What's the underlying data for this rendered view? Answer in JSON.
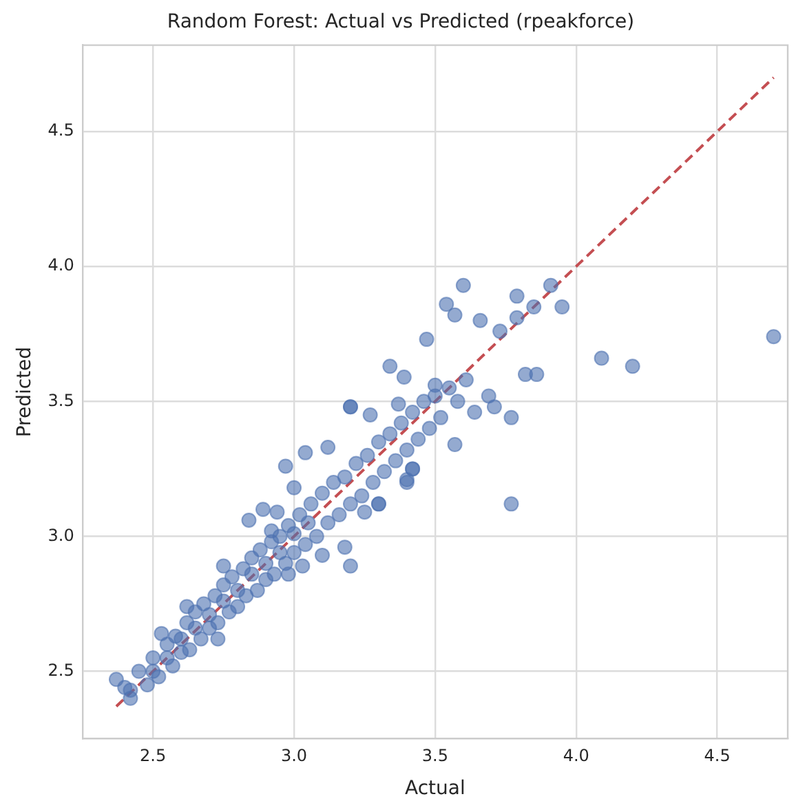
{
  "chart_data": {
    "type": "scatter",
    "title": "Random Forest: Actual vs Predicted (rpeakforce)",
    "xlabel": "Actual",
    "ylabel": "Predicted",
    "xlim": [
      2.25,
      4.75
    ],
    "ylim": [
      2.25,
      4.82
    ],
    "xticks": [
      2.5,
      {
        "value": 3,
        "label": "3.0"
      },
      3.5,
      {
        "value": 4,
        "label": "4.0"
      },
      4.5
    ],
    "yticks": [
      2.5,
      {
        "value": 3,
        "label": "3.0"
      },
      3.5,
      {
        "value": 4,
        "label": "4.0"
      },
      4.5
    ],
    "grid": true,
    "legend": false,
    "series": [
      {
        "marker": "circle",
        "color": "#4c72b0",
        "x": [
          4.7,
          4.09,
          4.2,
          3.77,
          3.95,
          3.6,
          3.54,
          3.57,
          3.66,
          3.73,
          3.79,
          3.79,
          3.85,
          3.91,
          3.47,
          3.34,
          3.39,
          3.82,
          3.86,
          3.69,
          3.71,
          3.77,
          3.64,
          3.61,
          3.5,
          3.2,
          3.57,
          3.42,
          3.3,
          3.4,
          2.37,
          2.42,
          3.2,
          3.18,
          3.1,
          2.84,
          2.89,
          2.94,
          2.97,
          3.0,
          3.04,
          3.12,
          3.2,
          2.92,
          2.75,
          2.62,
          2.53,
          2.73,
          2.98,
          3.03,
          3.3,
          3.25,
          3.42,
          3.4,
          3.27,
          3.37,
          2.45,
          2.48,
          2.5,
          2.52,
          2.55,
          2.57,
          2.58,
          2.6,
          2.62,
          2.63,
          2.65,
          2.67,
          2.68,
          2.7,
          2.72,
          2.73,
          2.75,
          2.77,
          2.78,
          2.8,
          2.82,
          2.83,
          2.85,
          2.87,
          2.88,
          2.9,
          2.92,
          2.93,
          2.95,
          2.97,
          2.98,
          3.0,
          3.02,
          3.04,
          3.06,
          3.08,
          3.1,
          3.12,
          3.14,
          3.16,
          3.18,
          3.2,
          3.22,
          3.24,
          3.26,
          3.28,
          3.3,
          3.32,
          3.34,
          3.36,
          3.38,
          3.4,
          3.42,
          3.44,
          3.46,
          3.48,
          3.5,
          3.52,
          3.55,
          3.58,
          2.6,
          2.65,
          2.7,
          2.75,
          2.8,
          2.85,
          2.9,
          2.95,
          3.0,
          3.05,
          2.55,
          2.5,
          2.42,
          2.4
        ],
        "values": [
          3.74,
          3.66,
          3.63,
          3.12,
          3.85,
          3.93,
          3.86,
          3.82,
          3.8,
          3.76,
          3.89,
          3.81,
          3.85,
          3.93,
          3.73,
          3.63,
          3.59,
          3.6,
          3.6,
          3.52,
          3.48,
          3.44,
          3.46,
          3.58,
          3.56,
          3.48,
          3.34,
          3.25,
          3.12,
          3.2,
          2.47,
          2.4,
          2.89,
          2.96,
          2.93,
          3.06,
          3.1,
          3.09,
          3.26,
          3.18,
          3.31,
          3.33,
          3.48,
          3.02,
          2.89,
          2.74,
          2.64,
          2.62,
          2.86,
          2.89,
          3.12,
          3.09,
          3.25,
          3.21,
          3.45,
          3.49,
          2.5,
          2.45,
          2.55,
          2.48,
          2.6,
          2.52,
          2.63,
          2.57,
          2.68,
          2.58,
          2.72,
          2.62,
          2.75,
          2.66,
          2.78,
          2.68,
          2.82,
          2.72,
          2.85,
          2.74,
          2.88,
          2.78,
          2.92,
          2.8,
          2.95,
          2.84,
          2.98,
          2.86,
          3.0,
          2.9,
          3.04,
          2.94,
          3.08,
          2.97,
          3.12,
          3.0,
          3.16,
          3.05,
          3.2,
          3.08,
          3.22,
          3.12,
          3.27,
          3.15,
          3.3,
          3.2,
          3.35,
          3.24,
          3.38,
          3.28,
          3.42,
          3.32,
          3.46,
          3.36,
          3.5,
          3.4,
          3.52,
          3.44,
          3.55,
          3.5,
          2.62,
          2.66,
          2.71,
          2.76,
          2.8,
          2.86,
          2.9,
          2.94,
          3.01,
          3.05,
          2.55,
          2.5,
          2.43,
          2.44
        ]
      },
      {
        "type": "line",
        "marker": "none",
        "line_style": "dashed",
        "color": "#c44e52",
        "x": [
          2.37,
          4.7
        ],
        "values": [
          2.37,
          4.7
        ]
      }
    ]
  }
}
